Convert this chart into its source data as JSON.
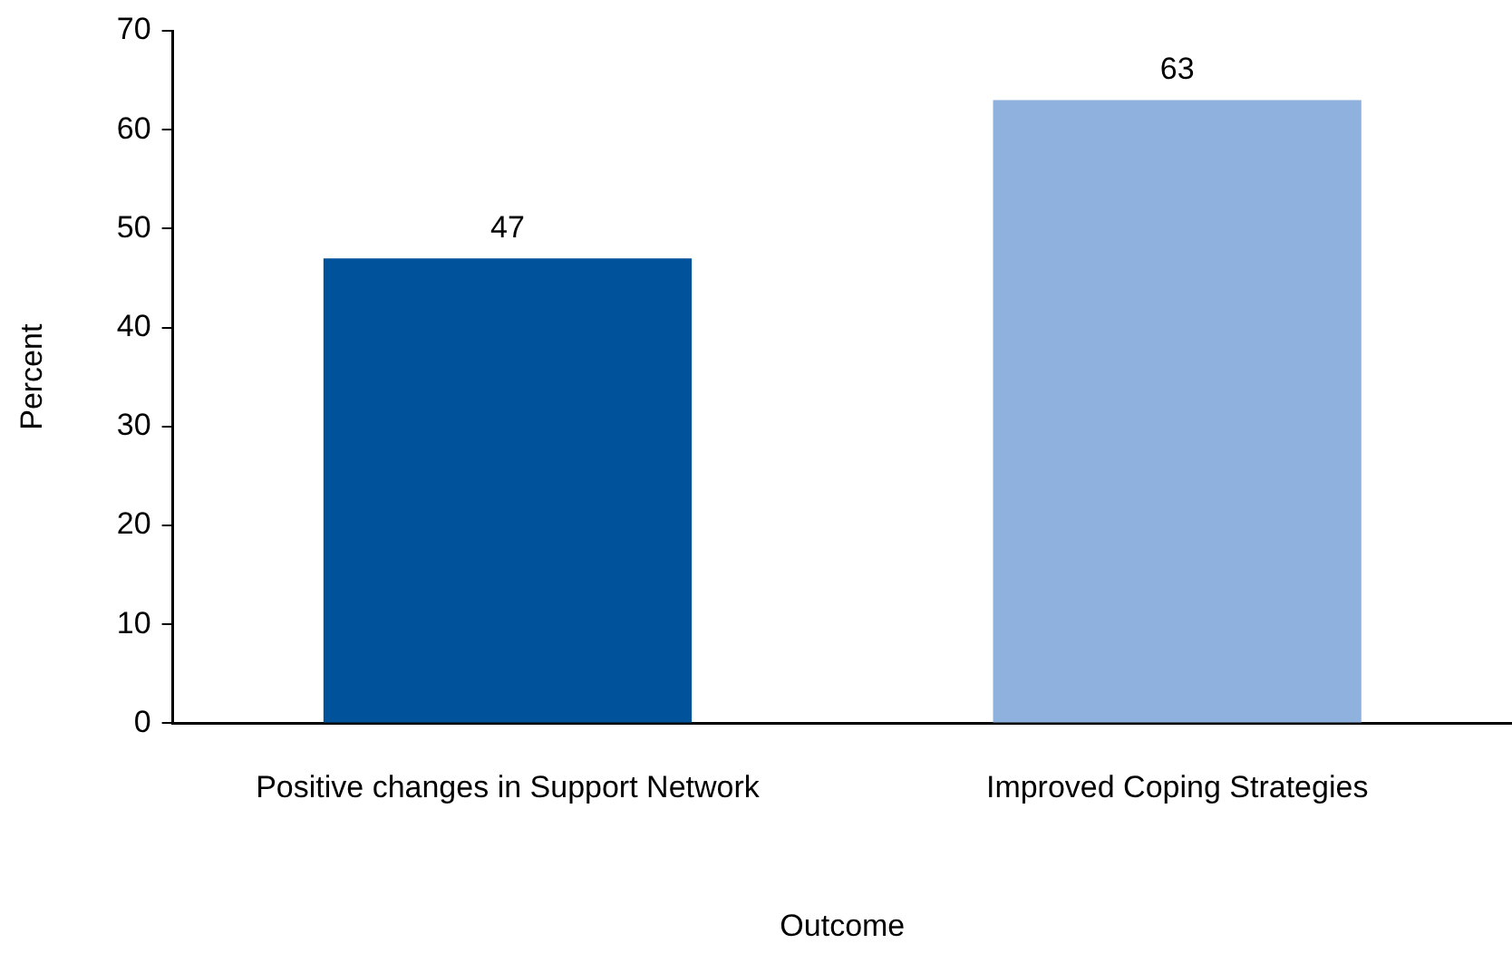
{
  "chart_data": {
    "type": "bar",
    "xlabel": "Outcome",
    "ylabel": "Percent",
    "categories": [
      "Positive changes in Support Network",
      "Improved Coping Strategies"
    ],
    "values": [
      47,
      63
    ],
    "colors": [
      "#00529b",
      "#8eb1de"
    ],
    "ylim": [
      0,
      70
    ],
    "yticks": [
      0,
      10,
      20,
      30,
      40,
      50,
      60,
      70
    ],
    "grid": false,
    "legend": false,
    "data_labels": true
  }
}
